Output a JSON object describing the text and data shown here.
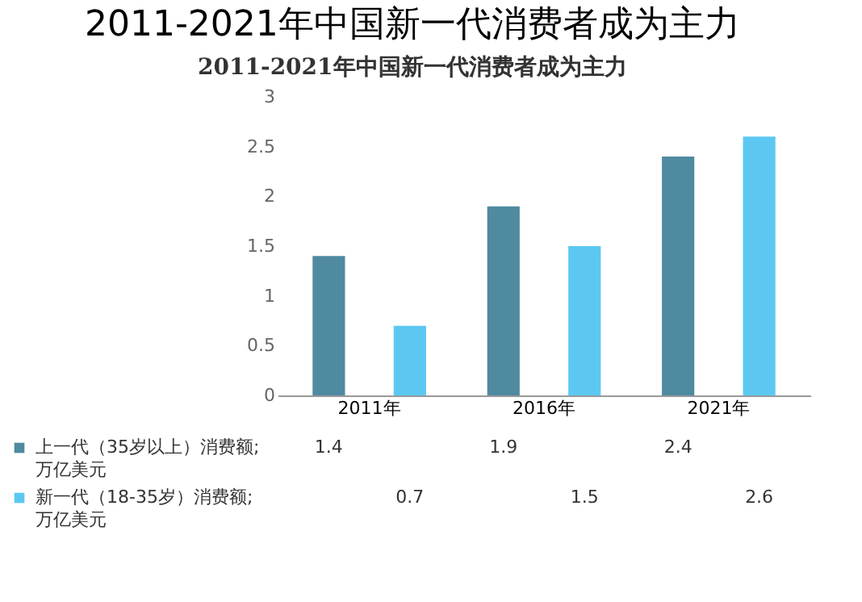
{
  "chart_data": {
    "type": "bar",
    "title": "2011-2021年中国新一代消费者成为主力",
    "subtitle": "2011-2021年中国新一代消费者成为主力",
    "categories": [
      "2011年",
      "2016年",
      "2021年"
    ],
    "series": [
      {
        "name": "上一代（35岁以上）消费额;万亿美元",
        "color": "#4f8aa0",
        "values": [
          1.4,
          1.9,
          2.4
        ]
      },
      {
        "name": "新一代（18-35岁）消费额;万亿美元",
        "color": "#5cc8f2",
        "values": [
          0.7,
          1.5,
          2.6
        ]
      }
    ],
    "ylim": [
      0,
      3
    ],
    "yticks": [
      0,
      0.5,
      1,
      1.5,
      2,
      2.5,
      3
    ],
    "data_labels": true,
    "legend": "bottom"
  }
}
